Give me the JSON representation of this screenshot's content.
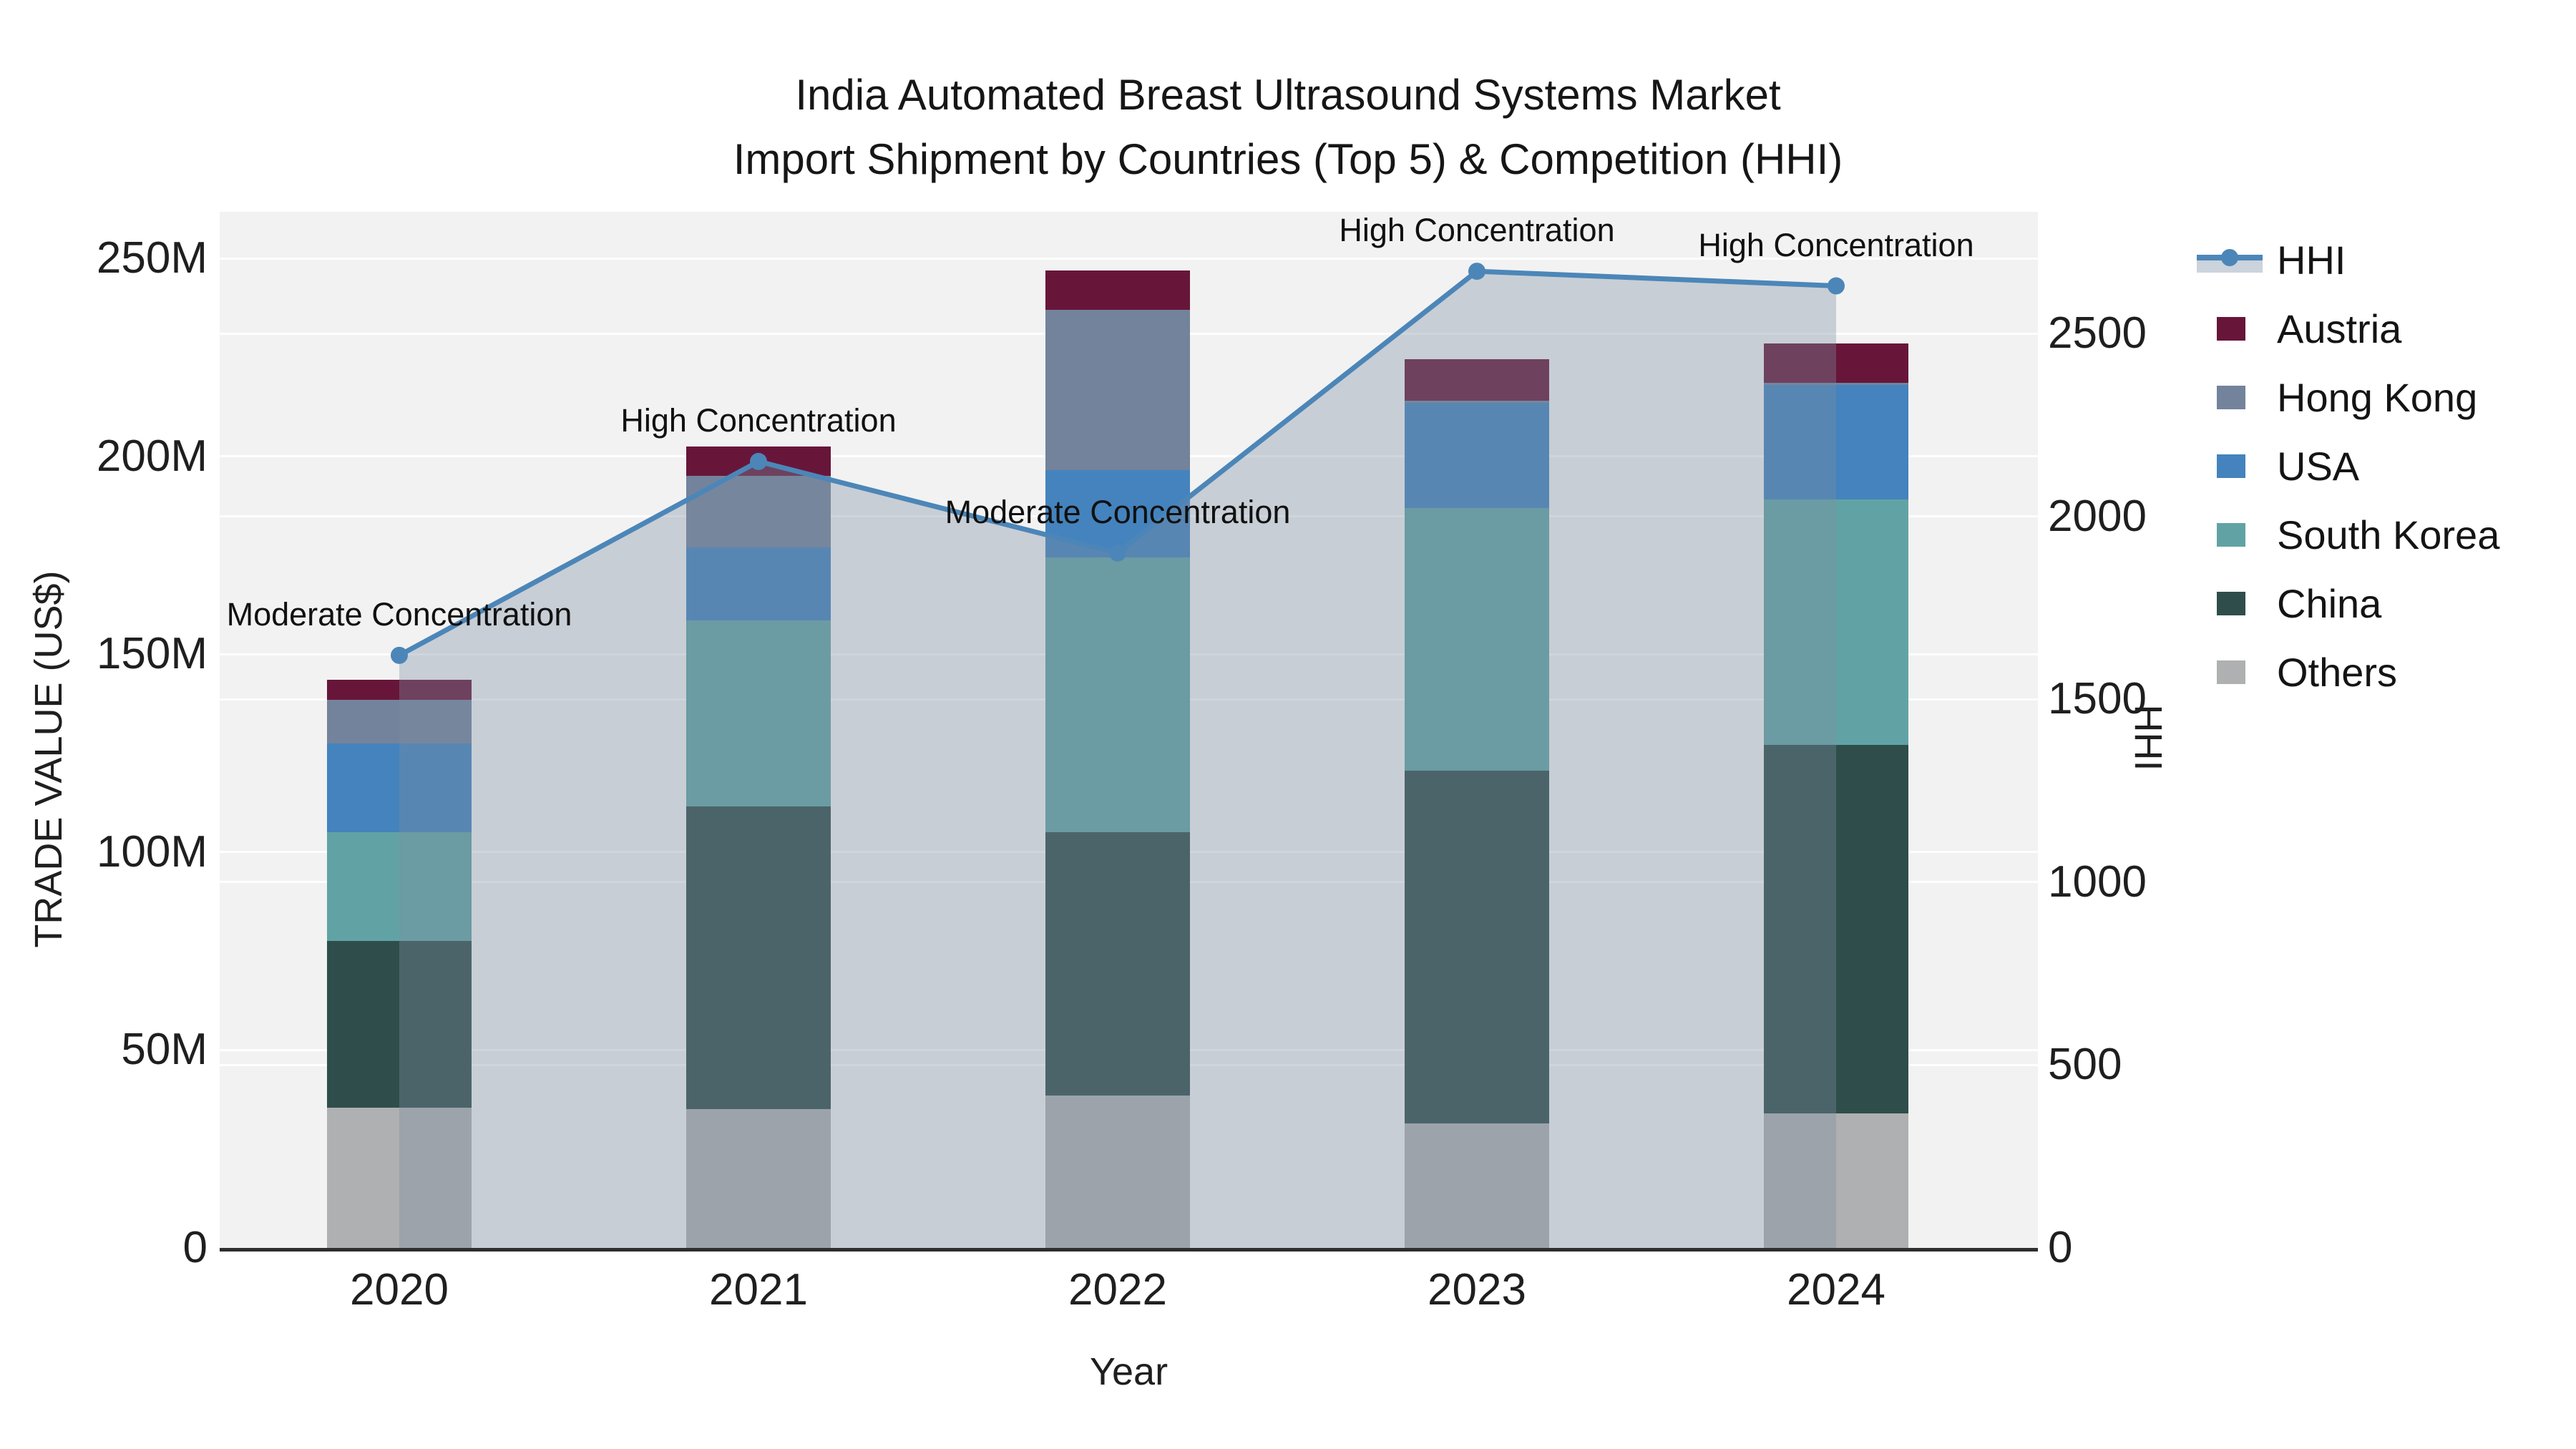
{
  "title": {
    "line1": "India Automated Breast Ultrasound Systems Market",
    "line2": "Import Shipment by Countries (Top 5) & Competition (HHI)"
  },
  "axes": {
    "left": {
      "title": "TRADE VALUE (US$)",
      "ticks": [
        {
          "label": "0",
          "value": 0
        },
        {
          "label": "50M",
          "value": 50
        },
        {
          "label": "100M",
          "value": 100
        },
        {
          "label": "150M",
          "value": 150
        },
        {
          "label": "200M",
          "value": 200
        },
        {
          "label": "250M",
          "value": 250
        }
      ]
    },
    "right": {
      "title": "HHI",
      "ticks": [
        {
          "label": "0",
          "value": 0
        },
        {
          "label": "500",
          "value": 500
        },
        {
          "label": "1000",
          "value": 1000
        },
        {
          "label": "1500",
          "value": 1500
        },
        {
          "label": "2000",
          "value": 2000
        },
        {
          "label": "2500",
          "value": 2500
        }
      ]
    },
    "x": {
      "title": "Year"
    }
  },
  "legend": {
    "items": [
      {
        "label": "HHI",
        "color": "#4C86B8",
        "kind": "line"
      },
      {
        "label": "Austria",
        "color": "#67163A",
        "kind": "square"
      },
      {
        "label": "Hong Kong",
        "color": "#73839B",
        "kind": "square"
      },
      {
        "label": "USA",
        "color": "#4483BD",
        "kind": "square"
      },
      {
        "label": "South Korea",
        "color": "#61A3A4",
        "kind": "square"
      },
      {
        "label": "China",
        "color": "#2F4E4B",
        "kind": "square"
      },
      {
        "label": "Others",
        "color": "#AEB0B1",
        "kind": "square"
      }
    ]
  },
  "chart_data": {
    "type": "bar",
    "subtype": "stacked-bars-with-line-overlay",
    "title": "India Automated Breast Ultrasound Systems Market — Import Shipment by Countries (Top 5) & Competition (HHI)",
    "xlabel": "Year",
    "ylabel_left": "TRADE VALUE (US$)",
    "ylabel_right": "HHI",
    "ylim_left_millions": [
      0,
      261
    ],
    "ylim_right_hhi": [
      0,
      2830
    ],
    "grid": true,
    "legend_position": "right",
    "categories": [
      "2020",
      "2021",
      "2022",
      "2023",
      "2024"
    ],
    "bar_series_bottom_to_top": [
      {
        "name": "Others",
        "color": "#AEB0B1",
        "values_millions": [
          35.5,
          35,
          38.5,
          31.5,
          34
        ]
      },
      {
        "name": "China",
        "color": "#2F4E4B",
        "values_millions": [
          42,
          76.5,
          66.5,
          89,
          93
        ]
      },
      {
        "name": "South Korea",
        "color": "#61A3A4",
        "values_millions": [
          27.5,
          47,
          69.5,
          66.5,
          62
        ]
      },
      {
        "name": "USA",
        "color": "#4483BD",
        "values_millions": [
          22.5,
          18.5,
          22,
          26.5,
          29
        ]
      },
      {
        "name": "Hong Kong",
        "color": "#73839B",
        "values_millions": [
          11,
          18,
          40.5,
          0.5,
          0.5
        ]
      },
      {
        "name": "Austria",
        "color": "#67163A",
        "values_millions": [
          5,
          7.5,
          10,
          10.5,
          10
        ]
      }
    ],
    "bar_totals_millions": [
      143.5,
      202.5,
      247,
      224.5,
      228.5
    ],
    "line_series": {
      "name": "HHI",
      "color": "#4C86B8",
      "fill_color": "rgba(125,140,162,0.36)",
      "values": [
        1620,
        2150,
        1900,
        2670,
        2630
      ]
    },
    "annotations": [
      {
        "category": "2020",
        "text": "Moderate Concentration"
      },
      {
        "category": "2021",
        "text": "High Concentration"
      },
      {
        "category": "2022",
        "text": "Moderate Concentration"
      },
      {
        "category": "2023",
        "text": "High Concentration"
      },
      {
        "category": "2024",
        "text": "High Concentration"
      }
    ]
  },
  "colors": {
    "plot_background": "#F2F2F2",
    "page_background": "#FFFFFF",
    "gridline": "#FFFFFF",
    "axis_line": "#2E2E2E",
    "text": "#1A1A1A"
  }
}
